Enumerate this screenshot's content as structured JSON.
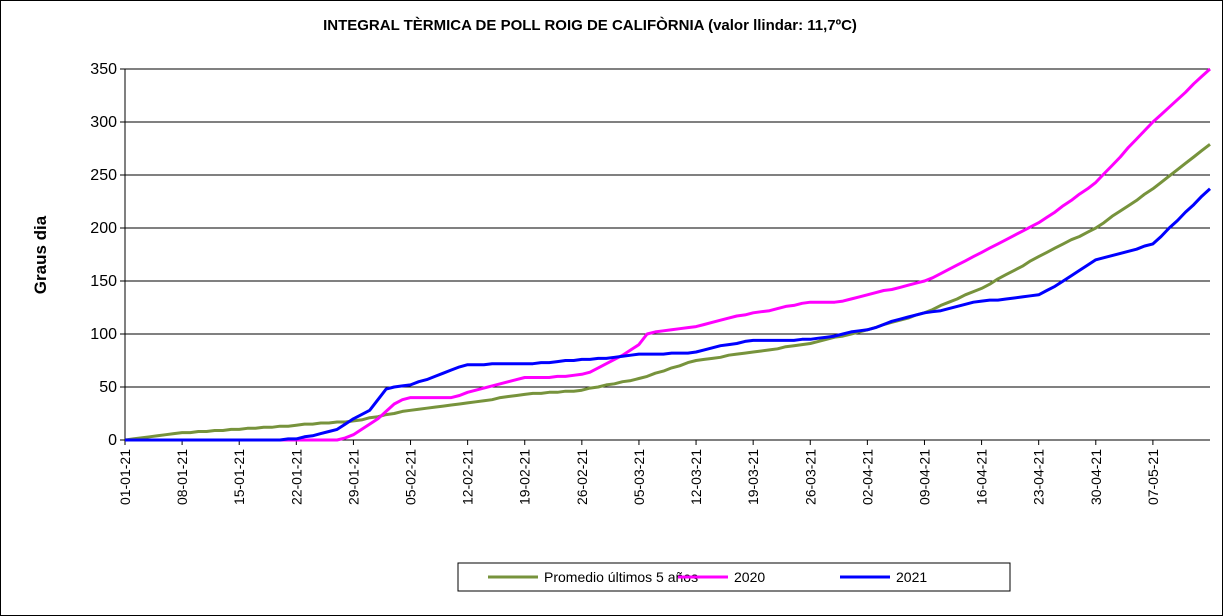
{
  "chart_data": {
    "type": "line",
    "title": "INTEGRAL TÈRMICA DE POLL ROIG DE CALIFÒRNIA (valor llindar: 11,7ºC)",
    "ylabel": "Graus dia",
    "categories": [
      "01-01-21",
      null,
      null,
      null,
      null,
      null,
      null,
      "08-01-21",
      null,
      null,
      null,
      null,
      null,
      null,
      "15-01-21",
      null,
      null,
      null,
      null,
      null,
      null,
      "22-01-21",
      null,
      null,
      null,
      null,
      null,
      null,
      "29-01-21",
      null,
      null,
      null,
      null,
      null,
      null,
      "05-02-21",
      null,
      null,
      null,
      null,
      null,
      null,
      "12-02-21",
      null,
      null,
      null,
      null,
      null,
      null,
      "19-02-21",
      null,
      null,
      null,
      null,
      null,
      null,
      "26-02-21",
      null,
      null,
      null,
      null,
      null,
      null,
      "05-03-21",
      null,
      null,
      null,
      null,
      null,
      null,
      "12-03-21",
      null,
      null,
      null,
      null,
      null,
      null,
      "19-03-21",
      null,
      null,
      null,
      null,
      null,
      null,
      "26-03-21",
      null,
      null,
      null,
      null,
      null,
      null,
      "02-04-21",
      null,
      null,
      null,
      null,
      null,
      null,
      "09-04-21",
      null,
      null,
      null,
      null,
      null,
      null,
      "16-04-21",
      null,
      null,
      null,
      null,
      null,
      null,
      "23-04-21",
      null,
      null,
      null,
      null,
      null,
      null,
      "30-04-21",
      null,
      null,
      null,
      null,
      null,
      null,
      "07-05-21",
      null,
      null,
      null,
      null,
      null,
      null,
      null
    ],
    "series": [
      {
        "name": "Promedio últimos 5 años",
        "color": "#77933c",
        "values": [
          0,
          1,
          2,
          3,
          4,
          5,
          6,
          7,
          7,
          8,
          8,
          9,
          9,
          10,
          10,
          11,
          11,
          12,
          12,
          13,
          13,
          14,
          15,
          15,
          16,
          16,
          17,
          17,
          18,
          19,
          21,
          22,
          24,
          25,
          27,
          28,
          29,
          30,
          31,
          32,
          33,
          34,
          35,
          36,
          37,
          38,
          40,
          41,
          42,
          43,
          44,
          44,
          45,
          45,
          46,
          46,
          47,
          49,
          50,
          52,
          53,
          55,
          56,
          58,
          60,
          63,
          65,
          68,
          70,
          73,
          75,
          76,
          77,
          78,
          80,
          81,
          82,
          83,
          84,
          85,
          86,
          88,
          89,
          90,
          91,
          93,
          95,
          97,
          98,
          100,
          102,
          104,
          106,
          109,
          111,
          113,
          115,
          118,
          120,
          123,
          127,
          130,
          133,
          137,
          140,
          143,
          147,
          152,
          156,
          160,
          164,
          169,
          173,
          177,
          181,
          185,
          189,
          192,
          196,
          200,
          205,
          211,
          216,
          221,
          226,
          232,
          237,
          243,
          249,
          255,
          261,
          267,
          273,
          279
        ]
      },
      {
        "name": "2020",
        "color": "#ff00ff",
        "values": [
          0,
          0,
          0,
          0,
          0,
          0,
          0,
          0,
          0,
          0,
          0,
          0,
          0,
          0,
          0,
          0,
          0,
          0,
          0,
          0,
          0,
          0,
          0,
          0,
          0,
          0,
          0,
          2,
          5,
          10,
          15,
          20,
          27,
          34,
          38,
          40,
          40,
          40,
          40,
          40,
          40,
          42,
          45,
          47,
          49,
          51,
          53,
          55,
          57,
          59,
          59,
          59,
          59,
          60,
          60,
          61,
          62,
          64,
          68,
          72,
          76,
          80,
          85,
          90,
          100,
          102,
          103,
          104,
          105,
          106,
          107,
          109,
          111,
          113,
          115,
          117,
          118,
          120,
          121,
          122,
          124,
          126,
          127,
          129,
          130,
          130,
          130,
          130,
          131,
          133,
          135,
          137,
          139,
          141,
          142,
          144,
          146,
          148,
          150,
          153,
          157,
          161,
          165,
          169,
          173,
          177,
          181,
          185,
          189,
          193,
          197,
          201,
          205,
          210,
          215,
          221,
          226,
          232,
          237,
          243,
          251,
          259,
          267,
          276,
          284,
          292,
          300,
          307,
          314,
          321,
          328,
          336,
          343,
          350
        ]
      },
      {
        "name": "2021",
        "color": "#0000ff",
        "values": [
          0,
          0,
          0,
          0,
          0,
          0,
          0,
          0,
          0,
          0,
          0,
          0,
          0,
          0,
          0,
          0,
          0,
          0,
          0,
          0,
          1,
          1,
          3,
          4,
          6,
          8,
          10,
          15,
          20,
          24,
          28,
          38,
          48,
          50,
          51,
          52,
          55,
          57,
          60,
          63,
          66,
          69,
          71,
          71,
          71,
          72,
          72,
          72,
          72,
          72,
          72,
          73,
          73,
          74,
          75,
          75,
          76,
          76,
          77,
          77,
          78,
          79,
          80,
          81,
          81,
          81,
          81,
          82,
          82,
          82,
          83,
          85,
          87,
          89,
          90,
          91,
          93,
          94,
          94,
          94,
          94,
          94,
          94,
          95,
          95,
          96,
          97,
          98,
          100,
          102,
          103,
          104,
          106,
          109,
          112,
          114,
          116,
          118,
          120,
          121,
          122,
          124,
          126,
          128,
          130,
          131,
          132,
          132,
          133,
          134,
          135,
          136,
          137,
          141,
          145,
          150,
          155,
          160,
          165,
          170,
          172,
          174,
          176,
          178,
          180,
          183,
          185,
          192,
          200,
          207,
          215,
          222,
          230,
          237
        ]
      }
    ],
    "ylim": [
      0,
      350
    ],
    "yticks": [
      0,
      50,
      100,
      150,
      200,
      250,
      300,
      350
    ],
    "grid": true,
    "legend": "bottom"
  }
}
